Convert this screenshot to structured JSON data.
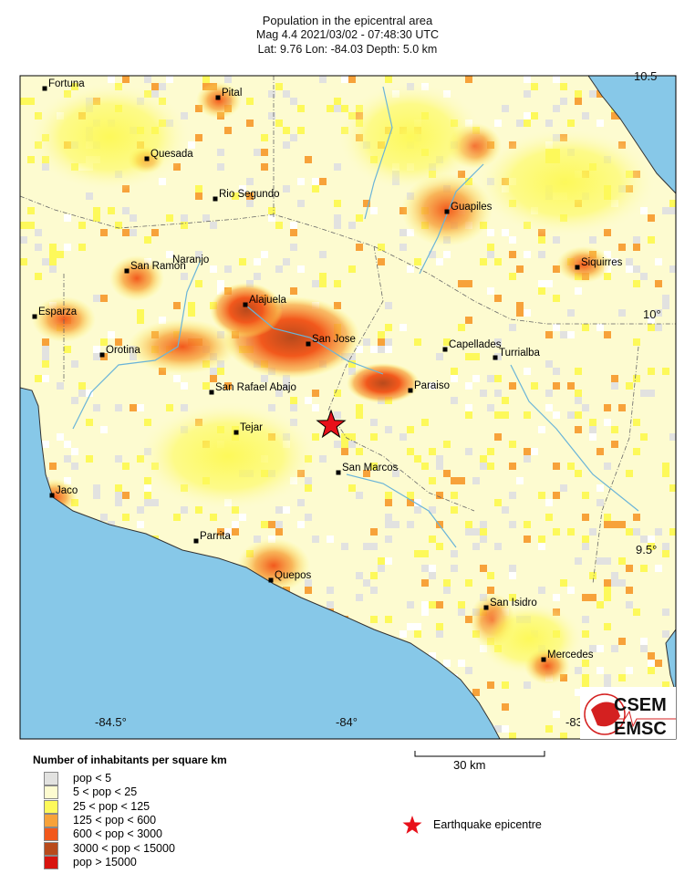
{
  "header": {
    "title": "Population in the epicentral area",
    "event_line": "Mag 4.4  2021/03/02 - 07:48:30 UTC",
    "location_line": "Lat:  9.76    Lon: -84.03     Depth:  5.0 km"
  },
  "map": {
    "lon_ticks": [
      "-84.5°",
      "-84°",
      "-83"
    ],
    "lat_ticks": [
      "10.5",
      "10°",
      "9.5°"
    ],
    "ocean_color": "#87c8e8",
    "epicentre": {
      "lat": 9.76,
      "lon": -84.03,
      "color": "#e8101a"
    },
    "cities": [
      {
        "name": "Fortuna"
      },
      {
        "name": "Pital"
      },
      {
        "name": "Quesada"
      },
      {
        "name": "Rio Segundo"
      },
      {
        "name": "Guapiles"
      },
      {
        "name": "San Ramon"
      },
      {
        "name": "Naranjo"
      },
      {
        "name": "Siquirres"
      },
      {
        "name": "Esparza"
      },
      {
        "name": "Alajuela"
      },
      {
        "name": "San Jose"
      },
      {
        "name": "Orotina"
      },
      {
        "name": "Capellades"
      },
      {
        "name": "Turrialba"
      },
      {
        "name": "Paraiso"
      },
      {
        "name": "San Rafael Abajo"
      },
      {
        "name": "Tejar"
      },
      {
        "name": "San Marcos"
      },
      {
        "name": "Jaco"
      },
      {
        "name": "Parrita"
      },
      {
        "name": "Quepos"
      },
      {
        "name": "San Isidro"
      },
      {
        "name": "Mercedes"
      }
    ]
  },
  "logo": {
    "line1": "CSEM",
    "line2": "EMSC"
  },
  "legend": {
    "title": "Number of inhabitants per square km",
    "items": [
      {
        "label": "pop < 5",
        "color": "#e2e2e0"
      },
      {
        "label": "5 < pop < 25",
        "color": "#fdfbd0"
      },
      {
        "label": "25 < pop < 125",
        "color": "#fdf95a"
      },
      {
        "label": "125 < pop < 600",
        "color": "#f7a23a"
      },
      {
        "label": "600 < pop < 3000",
        "color": "#f2581c"
      },
      {
        "label": "3000 < pop < 15000",
        "color": "#b84a1c"
      },
      {
        "label": "pop > 15000",
        "color": "#d8140f"
      }
    ]
  },
  "scale_bar": {
    "label": "30 km"
  },
  "epicentre_legend": {
    "label": "Earthquake epicentre"
  }
}
